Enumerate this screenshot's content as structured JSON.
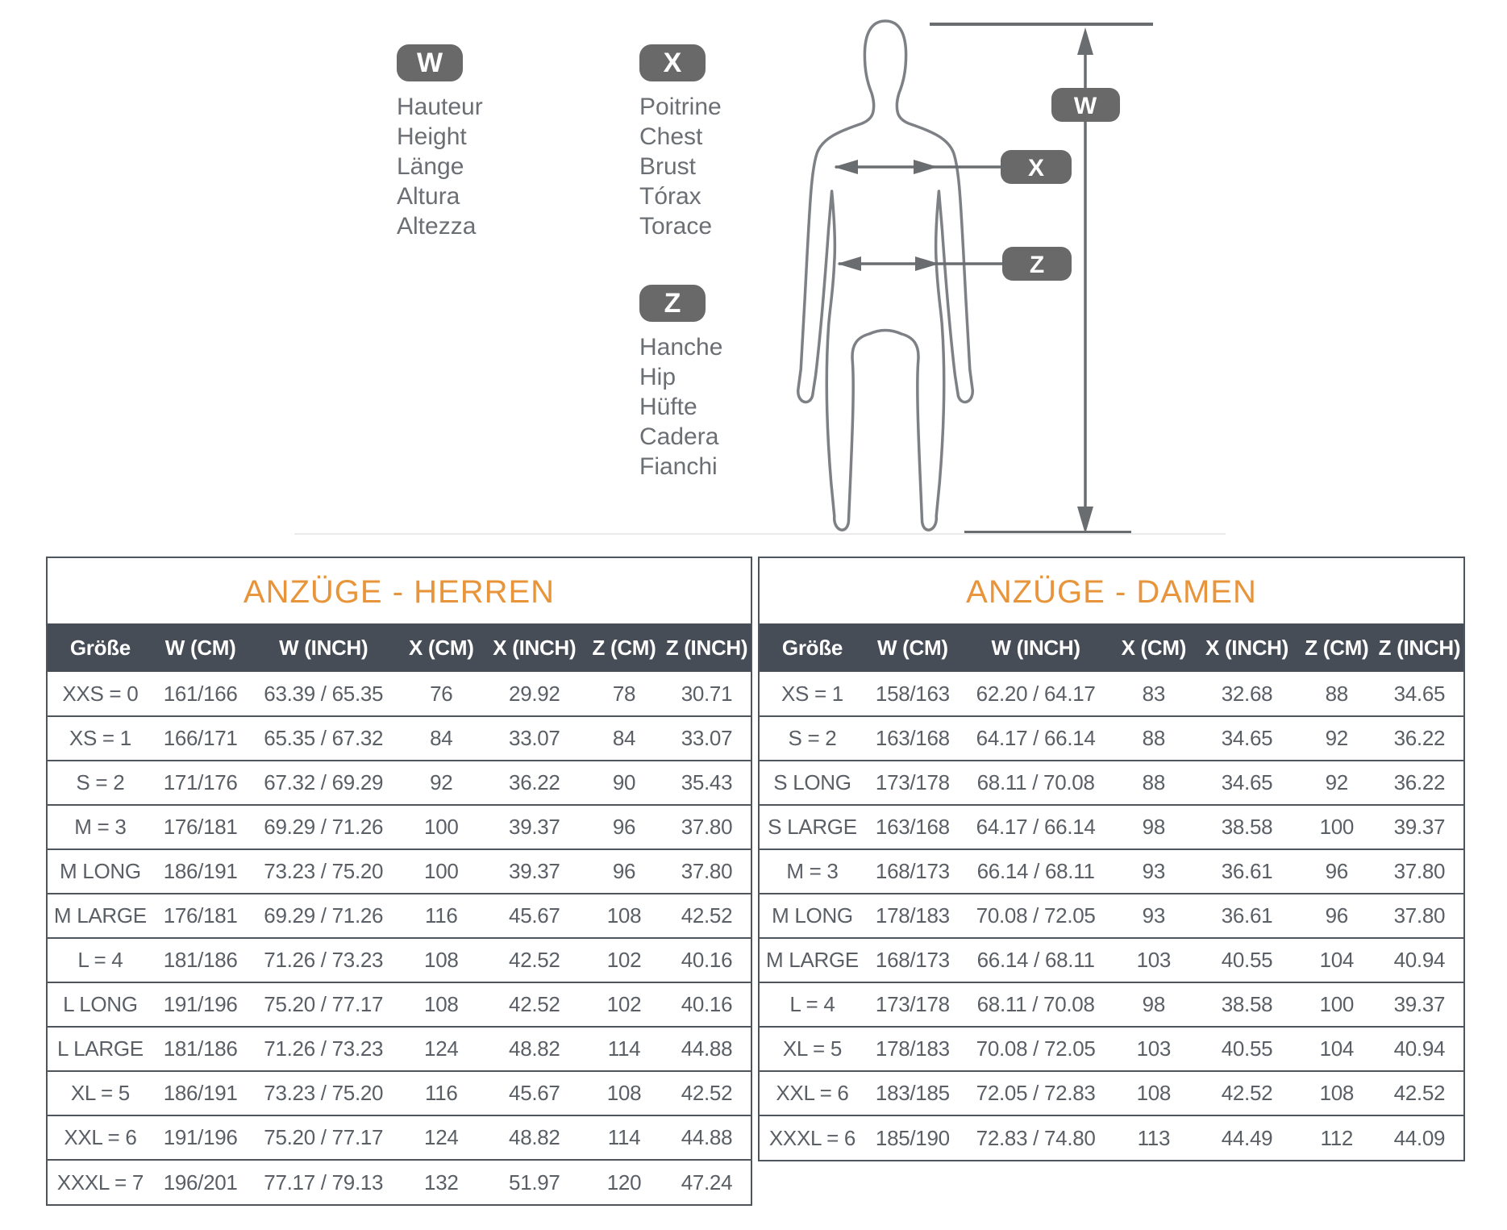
{
  "diagram": {
    "legends": [
      {
        "badge": "W",
        "lines": [
          "Hauteur",
          "Height",
          "Länge",
          "Altura",
          "Altezza"
        ]
      },
      {
        "badge": "X",
        "lines": [
          "Poitrine",
          "Chest",
          "Brust",
          "Tórax",
          "Torace"
        ]
      },
      {
        "badge": "Z",
        "lines": [
          "Hanche",
          "Hip",
          "Hüfte",
          "Cadera",
          "Fianchi"
        ]
      }
    ],
    "figure": {
      "height_badge": "W",
      "chest_badge": "X",
      "hip_badge": "Z"
    }
  },
  "tables": [
    {
      "title": "ANZÜGE - HERREN",
      "columns": [
        "Größe",
        "W (CM)",
        "W (INCH)",
        "X (CM)",
        "X (INCH)",
        "Z (CM)",
        "Z (INCH)"
      ],
      "rows": [
        [
          "XXS = 0",
          "161/166",
          "63.39 / 65.35",
          "76",
          "29.92",
          "78",
          "30.71"
        ],
        [
          "XS = 1",
          "166/171",
          "65.35 / 67.32",
          "84",
          "33.07",
          "84",
          "33.07"
        ],
        [
          "S = 2",
          "171/176",
          "67.32 / 69.29",
          "92",
          "36.22",
          "90",
          "35.43"
        ],
        [
          "M = 3",
          "176/181",
          "69.29 / 71.26",
          "100",
          "39.37",
          "96",
          "37.80"
        ],
        [
          "M LONG",
          "186/191",
          "73.23 / 75.20",
          "100",
          "39.37",
          "96",
          "37.80"
        ],
        [
          "M LARGE",
          "176/181",
          "69.29 / 71.26",
          "116",
          "45.67",
          "108",
          "42.52"
        ],
        [
          "L = 4",
          "181/186",
          "71.26 / 73.23",
          "108",
          "42.52",
          "102",
          "40.16"
        ],
        [
          "L LONG",
          "191/196",
          "75.20 / 77.17",
          "108",
          "42.52",
          "102",
          "40.16"
        ],
        [
          "L LARGE",
          "181/186",
          "71.26 / 73.23",
          "124",
          "48.82",
          "114",
          "44.88"
        ],
        [
          "XL = 5",
          "186/191",
          "73.23 / 75.20",
          "116",
          "45.67",
          "108",
          "42.52"
        ],
        [
          "XXL = 6",
          "191/196",
          "75.20 / 77.17",
          "124",
          "48.82",
          "114",
          "44.88"
        ],
        [
          "XXXL = 7",
          "196/201",
          "77.17 / 79.13",
          "132",
          "51.97",
          "120",
          "47.24"
        ]
      ]
    },
    {
      "title": "ANZÜGE - DAMEN",
      "columns": [
        "Größe",
        "W (CM)",
        "W (INCH)",
        "X (CM)",
        "X (INCH)",
        "Z (CM)",
        "Z (INCH)"
      ],
      "rows": [
        [
          "XS = 1",
          "158/163",
          "62.20 / 64.17",
          "83",
          "32.68",
          "88",
          "34.65"
        ],
        [
          "S = 2",
          "163/168",
          "64.17 / 66.14",
          "88",
          "34.65",
          "92",
          "36.22"
        ],
        [
          "S LONG",
          "173/178",
          "68.11 / 70.08",
          "88",
          "34.65",
          "92",
          "36.22"
        ],
        [
          "S LARGE",
          "163/168",
          "64.17 / 66.14",
          "98",
          "38.58",
          "100",
          "39.37"
        ],
        [
          "M = 3",
          "168/173",
          "66.14 / 68.11",
          "93",
          "36.61",
          "96",
          "37.80"
        ],
        [
          "M LONG",
          "178/183",
          "70.08 / 72.05",
          "93",
          "36.61",
          "96",
          "37.80"
        ],
        [
          "M LARGE",
          "168/173",
          "66.14 / 68.11",
          "103",
          "40.55",
          "104",
          "40.94"
        ],
        [
          "L = 4",
          "173/178",
          "68.11 / 70.08",
          "98",
          "38.58",
          "100",
          "39.37"
        ],
        [
          "XL = 5",
          "178/183",
          "70.08 / 72.05",
          "103",
          "40.55",
          "104",
          "40.94"
        ],
        [
          "XXL = 6",
          "183/185",
          "72.05 / 72.83",
          "108",
          "42.52",
          "108",
          "42.52"
        ],
        [
          "XXXL = 6",
          "185/190",
          "72.83 / 74.80",
          "113",
          "44.49",
          "112",
          "44.09"
        ]
      ]
    }
  ],
  "colors": {
    "accent": "#e8943a",
    "header_bg": "#464d57",
    "header_text": "#ffffff",
    "body_text": "#5a5f66",
    "badge": "#696969",
    "figure_stroke": "#7d8084",
    "line": "#6a6d70",
    "border": "#4f555d",
    "label_text": "#6b6e73"
  }
}
